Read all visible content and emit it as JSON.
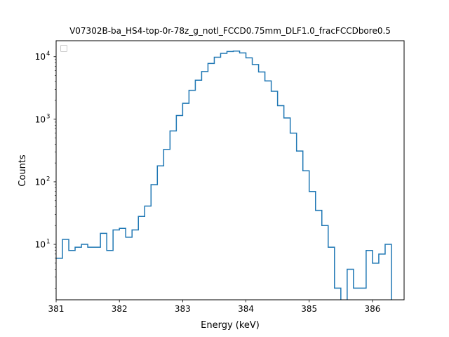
{
  "chart_data": {
    "type": "histogram-step",
    "title": "V07302B-ba_HS4-top-0r-78z_g_notl_FCCD0.75mm_DLF1.0_fracFCCDbore0.5",
    "xlabel": "Energy (keV)",
    "ylabel": "Counts",
    "xlim": [
      381,
      386.5
    ],
    "ylim": [
      1.3,
      18000
    ],
    "yscale": "log",
    "grid": false,
    "legend": "top-left, empty",
    "line_color": "#1f77b4",
    "x_ticks": [
      381,
      382,
      383,
      384,
      385,
      386
    ],
    "x_tick_labels": [
      "381",
      "382",
      "383",
      "384",
      "385",
      "386"
    ],
    "y_ticks": [
      10,
      100,
      1000,
      10000
    ],
    "y_tick_labels": [
      "10^1",
      "10^2",
      "10^3",
      "10^4"
    ],
    "bin_edges": [
      381.0,
      381.1,
      381.2,
      381.3,
      381.4,
      381.5,
      381.6,
      381.7,
      381.8,
      381.9,
      382.0,
      382.1,
      382.2,
      382.3,
      382.4,
      382.5,
      382.6,
      382.7,
      382.8,
      382.9,
      383.0,
      383.1,
      383.2,
      383.3,
      383.4,
      383.5,
      383.6,
      383.7,
      383.8,
      383.9,
      384.0,
      384.1,
      384.2,
      384.3,
      384.4,
      384.5,
      384.6,
      384.7,
      384.8,
      384.9,
      385.0,
      385.1,
      385.2,
      385.3,
      385.4,
      385.5,
      385.6,
      385.7,
      385.8,
      385.9,
      386.0,
      386.1,
      386.2,
      386.3,
      386.4
    ],
    "counts": [
      6,
      12,
      8,
      9,
      10,
      9,
      9,
      15,
      8,
      17,
      18,
      13,
      17,
      28,
      41,
      90,
      180,
      330,
      650,
      1150,
      1800,
      2900,
      4200,
      5800,
      7800,
      9800,
      11300,
      12100,
      12300,
      11500,
      9600,
      7500,
      5700,
      4100,
      2800,
      1650,
      1050,
      600,
      310,
      150,
      70,
      35,
      20,
      9,
      2,
      1,
      4,
      2,
      2,
      8,
      5,
      7,
      10,
      1
    ]
  }
}
